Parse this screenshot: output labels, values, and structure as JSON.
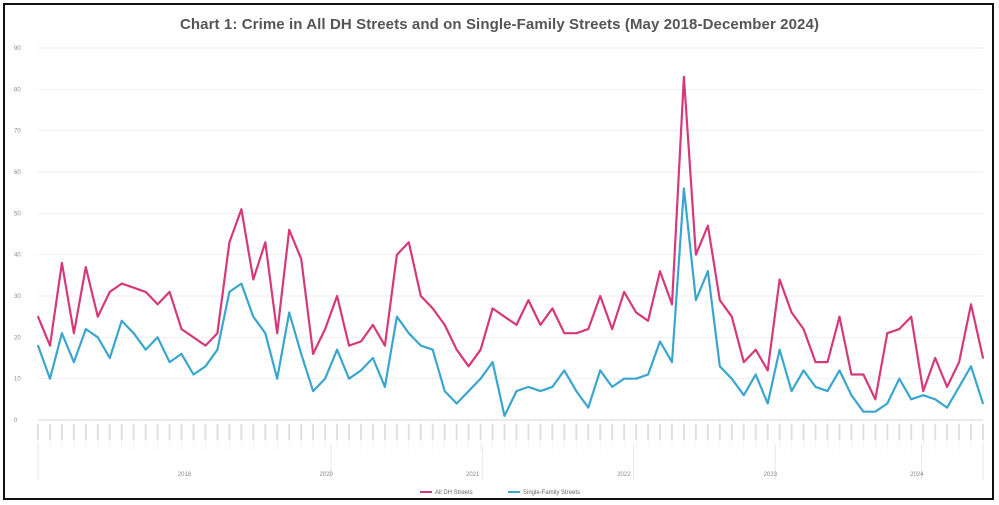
{
  "chart_data": {
    "type": "line",
    "title": "Chart 1: Crime in All DH Streets and on Single-Family Streets (May 2018-December 2024)",
    "xlabel": "",
    "ylabel": "",
    "ylim": [
      0,
      90
    ],
    "grid": true,
    "legend_position": "bottom-center",
    "y_ticks": [
      0,
      10,
      20,
      30,
      40,
      50,
      60,
      70,
      80,
      90
    ],
    "year_labels": [
      "2018",
      "2020",
      "2021",
      "2022",
      "2023",
      "2024"
    ],
    "series": [
      {
        "name": "All DH Streets",
        "color": "#d6397a",
        "values": [
          25,
          18,
          38,
          21,
          37,
          25,
          31,
          33,
          32,
          31,
          28,
          31,
          22,
          20,
          18,
          21,
          43,
          51,
          34,
          43,
          21,
          46,
          39,
          16,
          22,
          30,
          18,
          19,
          23,
          18,
          40,
          43,
          30,
          27,
          23,
          17,
          13,
          17,
          27,
          25,
          23,
          29,
          23,
          27,
          21,
          21,
          22,
          30,
          22,
          31,
          26,
          24,
          36,
          28,
          83,
          40,
          47,
          29,
          25,
          14,
          17,
          12,
          34,
          26,
          22,
          14,
          14,
          25,
          11,
          11,
          5,
          21,
          22,
          25,
          7,
          15,
          8,
          14,
          28,
          15
        ]
      },
      {
        "name": "Single-Family Streets",
        "color": "#3aa6cf",
        "values": [
          18,
          10,
          21,
          14,
          22,
          20,
          15,
          24,
          21,
          17,
          20,
          14,
          16,
          11,
          13,
          17,
          31,
          33,
          25,
          21,
          10,
          26,
          16,
          7,
          10,
          17,
          10,
          12,
          15,
          8,
          25,
          21,
          18,
          17,
          7,
          4,
          7,
          10,
          14,
          1,
          7,
          8,
          7,
          8,
          12,
          7,
          3,
          12,
          8,
          10,
          10,
          11,
          19,
          14,
          56,
          29,
          36,
          13,
          10,
          6,
          11,
          4,
          17,
          7,
          12,
          8,
          7,
          12,
          6,
          2,
          2,
          4,
          10,
          5,
          6,
          5,
          3,
          8,
          13,
          4
        ]
      }
    ]
  }
}
